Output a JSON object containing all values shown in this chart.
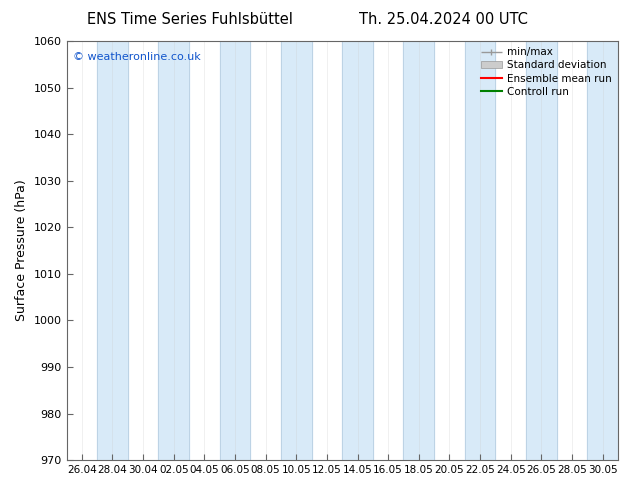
{
  "title_left": "ENS Time Series Fuhlsbüttel",
  "title_right": "Th. 25.04.2024 00 UTC",
  "ylabel": "Surface Pressure (hPa)",
  "watermark": "© weatheronline.co.uk",
  "ylim": [
    970,
    1060
  ],
  "yticks": [
    970,
    980,
    990,
    1000,
    1010,
    1020,
    1030,
    1040,
    1050,
    1060
  ],
  "x_labels": [
    "26.04",
    "28.04",
    "30.04",
    "02.05",
    "04.05",
    "06.05",
    "08.05",
    "10.05",
    "12.05",
    "14.05",
    "16.05",
    "18.05",
    "20.05",
    "22.05",
    "24.05",
    "26.05",
    "28.05",
    "30.05"
  ],
  "background_color": "#ffffff",
  "band_fill_color": "#d8eaf8",
  "band_edge_color": "#b0c8dc",
  "legend_entries": [
    "min/max",
    "Standard deviation",
    "Ensemble mean run",
    "Controll run"
  ],
  "legend_minmax_color": "#999999",
  "legend_std_color": "#cccccc",
  "legend_ensemble_color": "#ff0000",
  "legend_control_color": "#008000",
  "shaded_band_indices": [
    1,
    3,
    5,
    7,
    9,
    11,
    13,
    15,
    17
  ]
}
